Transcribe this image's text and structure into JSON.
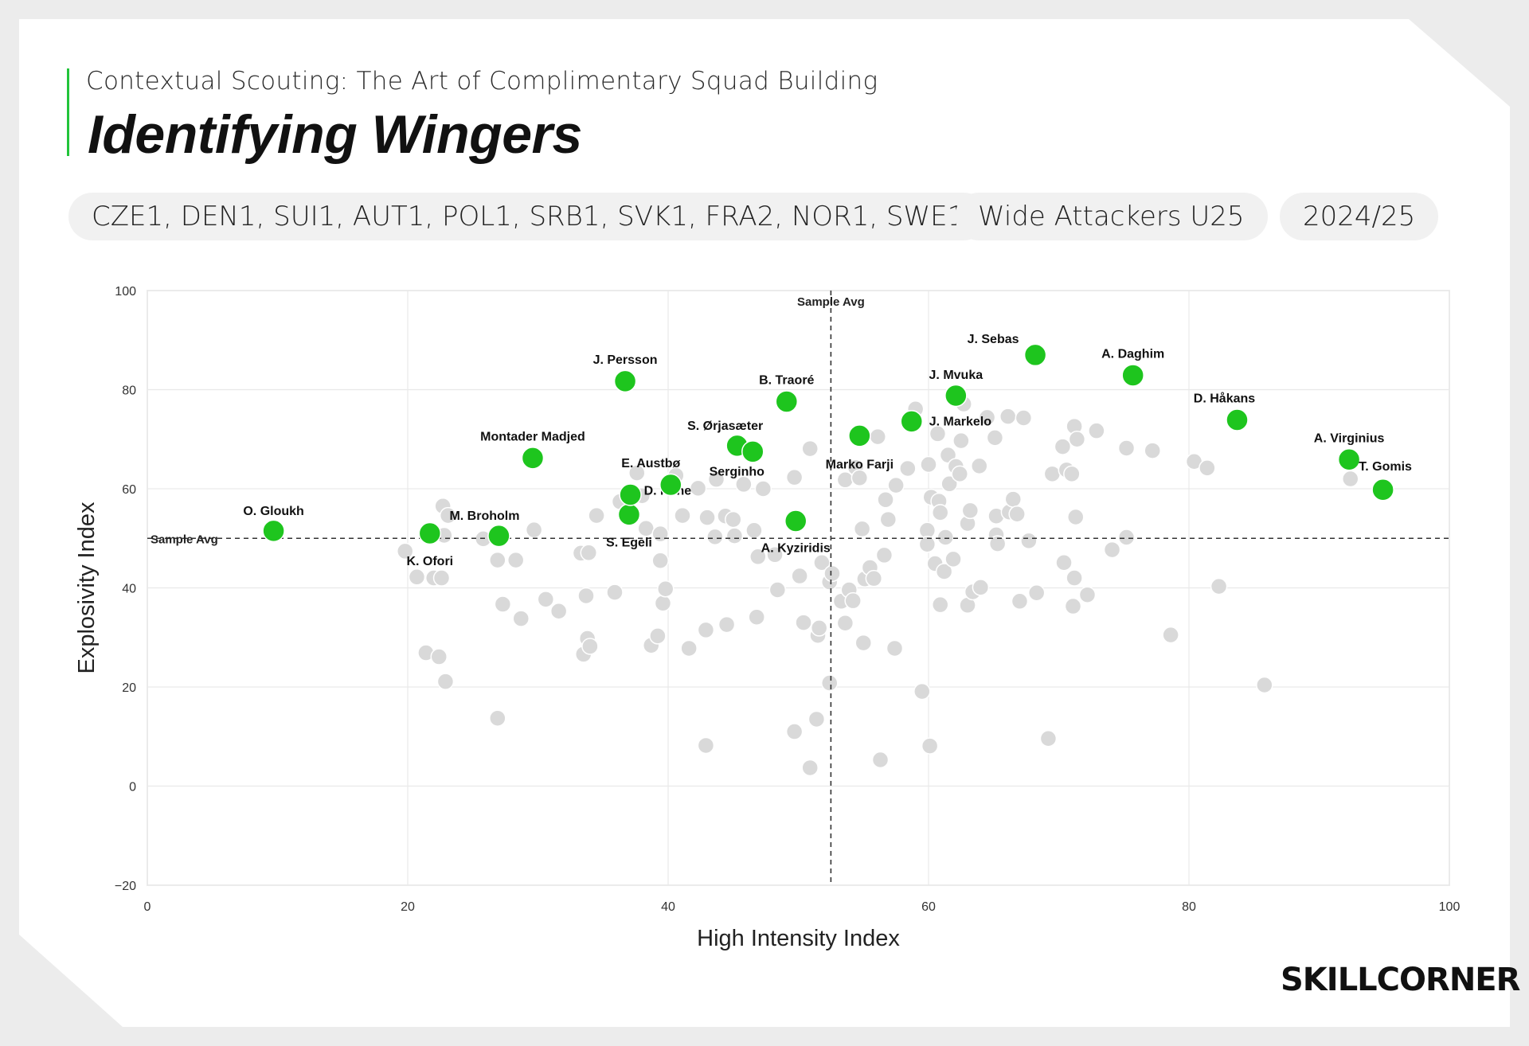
{
  "header": {
    "subtitle": "Contextual Scouting: The Art of Complimentary Squad Building",
    "title": "Identifying Wingers"
  },
  "filters": {
    "leagues": "CZE1, DEN1, SUI1, AUT1, POL1, SRB1, SVK1, FRA2, NOR1, SWE1",
    "group": "Wide Attackers U25",
    "season": "2024/25"
  },
  "brand": {
    "logo": "SKILLCORNER",
    "accent": "#1ec51e"
  },
  "chart_data": {
    "type": "scatter",
    "xlabel": "High Intensity Index",
    "ylabel": "Explosivity Index",
    "xlim": [
      0,
      100
    ],
    "ylim": [
      -20,
      100
    ],
    "xticks": [
      0,
      20,
      40,
      60,
      80,
      100
    ],
    "yticks": [
      -20,
      0,
      20,
      40,
      60,
      80,
      100
    ],
    "grid": true,
    "avg_label": "Sample Avg",
    "avg_x": 52.5,
    "avg_y": 50,
    "colors": {
      "highlight": "#1ec51e",
      "other": "#d9d9d9",
      "other_stroke": "#ffffff"
    },
    "highlighted": [
      {
        "name": "O. Gloukh",
        "x": 9.7,
        "y": 51.5
      },
      {
        "name": "K. Ofori",
        "x": 21.7,
        "y": 51.0
      },
      {
        "name": "M. Broholm",
        "x": 27.0,
        "y": 50.5
      },
      {
        "name": "Montader Madjed",
        "x": 29.6,
        "y": 66.2
      },
      {
        "name": "J. Persson",
        "x": 36.7,
        "y": 81.7
      },
      {
        "name": "S. Egeli",
        "x": 37.0,
        "y": 54.8
      },
      {
        "name": "D. Nene",
        "x": 37.1,
        "y": 58.8
      },
      {
        "name": "E. Austbø",
        "x": 40.2,
        "y": 60.8
      },
      {
        "name": "S. Ørjasæter",
        "x": 45.3,
        "y": 68.7
      },
      {
        "name": "Serginho",
        "x": 46.5,
        "y": 67.5
      },
      {
        "name": "B. Traoré",
        "x": 49.1,
        "y": 77.6
      },
      {
        "name": "A. Kyziridis",
        "x": 49.8,
        "y": 53.5
      },
      {
        "name": "Marko Farji",
        "x": 54.7,
        "y": 70.7
      },
      {
        "name": "J. Markelo",
        "x": 58.7,
        "y": 73.6
      },
      {
        "name": "J. Mvuka",
        "x": 62.1,
        "y": 78.8
      },
      {
        "name": "J. Sebas",
        "x": 68.2,
        "y": 87.0
      },
      {
        "name": "A. Daghim",
        "x": 75.7,
        "y": 82.9
      },
      {
        "name": "D. Håkans",
        "x": 83.7,
        "y": 73.9
      },
      {
        "name": "A. Virginius",
        "x": 92.3,
        "y": 65.9
      },
      {
        "name": "T. Gomis",
        "x": 94.9,
        "y": 59.8
      }
    ],
    "others": [
      [
        19.8,
        47.4
      ],
      [
        20.7,
        42.2
      ],
      [
        21.4,
        26.9
      ],
      [
        22.0,
        42.0
      ],
      [
        22.4,
        26.1
      ],
      [
        22.7,
        56.5
      ],
      [
        22.6,
        42.0
      ],
      [
        22.9,
        21.1
      ],
      [
        23.1,
        54.6
      ],
      [
        22.8,
        50.6
      ],
      [
        25.8,
        49.9
      ],
      [
        26.9,
        13.7
      ],
      [
        26.9,
        45.6
      ],
      [
        27.3,
        36.7
      ],
      [
        28.3,
        45.6
      ],
      [
        28.7,
        33.8
      ],
      [
        29.7,
        51.7
      ],
      [
        30.6,
        37.7
      ],
      [
        31.6,
        35.3
      ],
      [
        33.3,
        47.0
      ],
      [
        33.5,
        26.6
      ],
      [
        33.7,
        38.4
      ],
      [
        33.8,
        29.8
      ],
      [
        34.0,
        28.2
      ],
      [
        33.9,
        47.1
      ],
      [
        34.5,
        54.6
      ],
      [
        35.9,
        39.1
      ],
      [
        36.3,
        57.4
      ],
      [
        37.6,
        63.2
      ],
      [
        38.0,
        58.6
      ],
      [
        38.3,
        52.0
      ],
      [
        38.7,
        28.4
      ],
      [
        39.2,
        30.3
      ],
      [
        39.4,
        50.9
      ],
      [
        39.4,
        45.5
      ],
      [
        39.6,
        36.9
      ],
      [
        39.8,
        39.8
      ],
      [
        40.6,
        62.7
      ],
      [
        41.1,
        54.6
      ],
      [
        41.6,
        27.8
      ],
      [
        42.3,
        60.1
      ],
      [
        42.9,
        31.5
      ],
      [
        42.9,
        8.2
      ],
      [
        43.0,
        54.2
      ],
      [
        43.6,
        50.3
      ],
      [
        43.7,
        61.9
      ],
      [
        44.4,
        54.5
      ],
      [
        44.5,
        32.6
      ],
      [
        45.0,
        53.8
      ],
      [
        45.1,
        50.5
      ],
      [
        45.8,
        60.9
      ],
      [
        46.6,
        51.6
      ],
      [
        46.8,
        34.1
      ],
      [
        46.9,
        46.3
      ],
      [
        47.3,
        60.0
      ],
      [
        48.2,
        46.7
      ],
      [
        48.4,
        39.6
      ],
      [
        49.7,
        62.3
      ],
      [
        49.7,
        11.0
      ],
      [
        50.1,
        42.4
      ],
      [
        50.4,
        33.0
      ],
      [
        50.9,
        68.1
      ],
      [
        50.9,
        3.7
      ],
      [
        51.4,
        13.5
      ],
      [
        51.5,
        30.4
      ],
      [
        51.6,
        31.9
      ],
      [
        51.8,
        45.1
      ],
      [
        52.4,
        20.8
      ],
      [
        52.4,
        41.2
      ],
      [
        52.6,
        42.9
      ],
      [
        53.3,
        37.3
      ],
      [
        53.6,
        32.9
      ],
      [
        53.9,
        39.6
      ],
      [
        53.6,
        61.8
      ],
      [
        54.2,
        37.4
      ],
      [
        54.4,
        64.3
      ],
      [
        54.7,
        62.2
      ],
      [
        54.9,
        51.9
      ],
      [
        55.0,
        28.9
      ],
      [
        55.1,
        41.8
      ],
      [
        55.5,
        44.1
      ],
      [
        55.8,
        41.9
      ],
      [
        56.1,
        70.5
      ],
      [
        56.3,
        5.3
      ],
      [
        56.6,
        46.6
      ],
      [
        56.7,
        57.8
      ],
      [
        56.9,
        53.8
      ],
      [
        57.4,
        27.8
      ],
      [
        57.5,
        60.7
      ],
      [
        58.4,
        64.1
      ],
      [
        59.0,
        76.1
      ],
      [
        59.5,
        19.1
      ],
      [
        59.9,
        51.6
      ],
      [
        59.9,
        48.8
      ],
      [
        60.0,
        64.9
      ],
      [
        60.1,
        8.1
      ],
      [
        60.2,
        58.3
      ],
      [
        60.5,
        44.9
      ],
      [
        60.7,
        71.1
      ],
      [
        60.8,
        57.5
      ],
      [
        60.9,
        36.6
      ],
      [
        60.9,
        55.2
      ],
      [
        61.2,
        43.3
      ],
      [
        61.3,
        50.2
      ],
      [
        61.5,
        66.8
      ],
      [
        61.6,
        61.0
      ],
      [
        61.9,
        45.8
      ],
      [
        62.1,
        64.5
      ],
      [
        62.4,
        63.0
      ],
      [
        62.5,
        69.7
      ],
      [
        62.7,
        77.1
      ],
      [
        63.0,
        53.0
      ],
      [
        63.0,
        36.5
      ],
      [
        63.2,
        55.6
      ],
      [
        63.4,
        39.2
      ],
      [
        63.9,
        64.6
      ],
      [
        64.0,
        40.1
      ],
      [
        64.5,
        74.4
      ],
      [
        65.1,
        70.3
      ],
      [
        65.2,
        54.5
      ],
      [
        65.2,
        50.7
      ],
      [
        65.3,
        48.9
      ],
      [
        66.1,
        74.6
      ],
      [
        66.2,
        55.3
      ],
      [
        66.5,
        57.9
      ],
      [
        66.8,
        54.9
      ],
      [
        67.0,
        37.3
      ],
      [
        67.3,
        74.3
      ],
      [
        67.7,
        49.5
      ],
      [
        68.3,
        39.0
      ],
      [
        69.2,
        9.6
      ],
      [
        69.5,
        63.0
      ],
      [
        70.3,
        68.5
      ],
      [
        70.4,
        45.1
      ],
      [
        70.6,
        63.8
      ],
      [
        71.0,
        63.0
      ],
      [
        71.1,
        36.3
      ],
      [
        71.2,
        42.0
      ],
      [
        71.2,
        72.6
      ],
      [
        71.3,
        54.3
      ],
      [
        71.4,
        70.0
      ],
      [
        72.2,
        38.6
      ],
      [
        72.9,
        71.7
      ],
      [
        74.1,
        47.7
      ],
      [
        75.2,
        68.2
      ],
      [
        75.2,
        50.2
      ],
      [
        77.2,
        67.7
      ],
      [
        78.6,
        30.5
      ],
      [
        80.4,
        65.5
      ],
      [
        81.4,
        64.2
      ],
      [
        82.3,
        40.3
      ],
      [
        85.8,
        20.4
      ],
      [
        92.4,
        62.0
      ]
    ]
  }
}
